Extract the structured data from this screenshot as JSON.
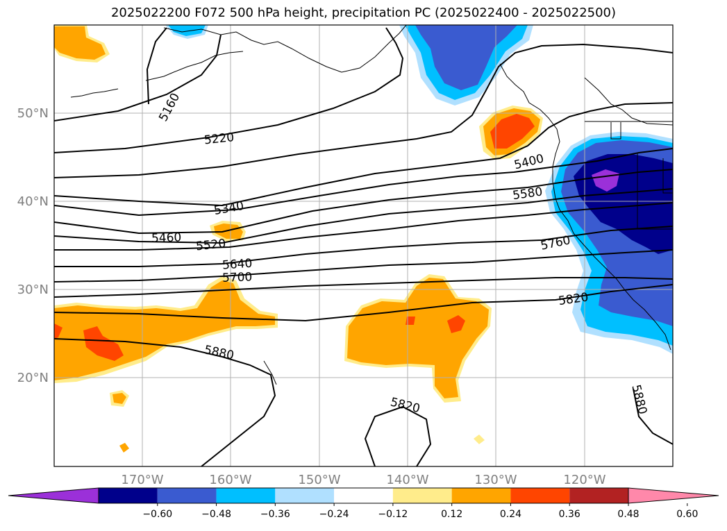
{
  "title": "2025022200 F072 500 hPa height, precipitation PC (2025022400 - 2025022500)",
  "latitude_labels": [
    "50°N",
    "40°N",
    "30°N",
    "20°N"
  ],
  "longitude_labels": [
    "170°W",
    "160°W",
    "150°W",
    "140°W",
    "130°W",
    "120°W"
  ],
  "contour_labels": [
    "5160",
    "5220",
    "5400",
    "5580",
    "5340",
    "5460",
    "5520",
    "5760",
    "5640",
    "5700",
    "5820",
    "5880",
    "5820",
    "5880"
  ],
  "colorbar": {
    "tick_labels": [
      "−0.60",
      "−0.48",
      "−0.36",
      "−0.24",
      "−0.12",
      "0.12",
      "0.24",
      "0.36",
      "0.48",
      "0.60"
    ],
    "colors": [
      "#9b30d9",
      "#00008b",
      "#3a5bd0",
      "#00bfff",
      "#b0e0ff",
      "#ffffff",
      "#ffec8b",
      "#ffa500",
      "#ff4500",
      "#b22222",
      "#ff88aa"
    ]
  },
  "colors": {
    "height_contour": "#000000",
    "gridline": "#b0b0b0",
    "coastline": "#000000"
  }
}
